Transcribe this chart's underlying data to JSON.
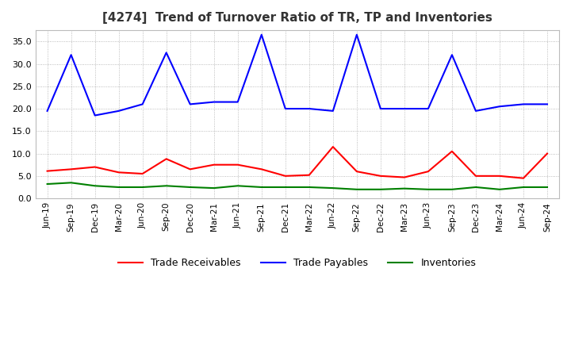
{
  "title": "[4274]  Trend of Turnover Ratio of TR, TP and Inventories",
  "x_labels": [
    "Jun-19",
    "Sep-19",
    "Dec-19",
    "Mar-20",
    "Jun-20",
    "Sep-20",
    "Dec-20",
    "Mar-21",
    "Jun-21",
    "Sep-21",
    "Dec-21",
    "Mar-22",
    "Jun-22",
    "Sep-22",
    "Dec-22",
    "Mar-23",
    "Jun-23",
    "Sep-23",
    "Dec-23",
    "Mar-24",
    "Jun-24",
    "Sep-24"
  ],
  "trade_receivables": [
    6.1,
    6.5,
    7.0,
    5.8,
    5.5,
    8.8,
    6.5,
    7.5,
    7.5,
    6.5,
    5.0,
    5.2,
    11.5,
    6.0,
    5.0,
    4.7,
    6.0,
    10.5,
    5.0,
    5.0,
    4.5,
    10.0
  ],
  "trade_payables": [
    19.5,
    32.0,
    18.5,
    19.5,
    21.0,
    32.5,
    21.0,
    21.5,
    21.5,
    36.5,
    20.0,
    20.0,
    19.5,
    36.5,
    20.0,
    20.0,
    20.0,
    32.0,
    19.5,
    20.5,
    21.0,
    21.0
  ],
  "inventories": [
    3.2,
    3.5,
    2.8,
    2.5,
    2.5,
    2.8,
    2.5,
    2.3,
    2.8,
    2.5,
    2.5,
    2.5,
    2.3,
    2.0,
    2.0,
    2.2,
    2.0,
    2.0,
    2.5,
    2.0,
    2.5,
    2.5
  ],
  "tr_color": "#ff0000",
  "tp_color": "#0000ff",
  "inv_color": "#008000",
  "ylim": [
    0.0,
    37.5
  ],
  "yticks": [
    0.0,
    5.0,
    10.0,
    15.0,
    20.0,
    25.0,
    30.0,
    35.0
  ],
  "bg_color": "#ffffff",
  "plot_bg_color": "#ffffff",
  "legend_labels": [
    "Trade Receivables",
    "Trade Payables",
    "Inventories"
  ]
}
